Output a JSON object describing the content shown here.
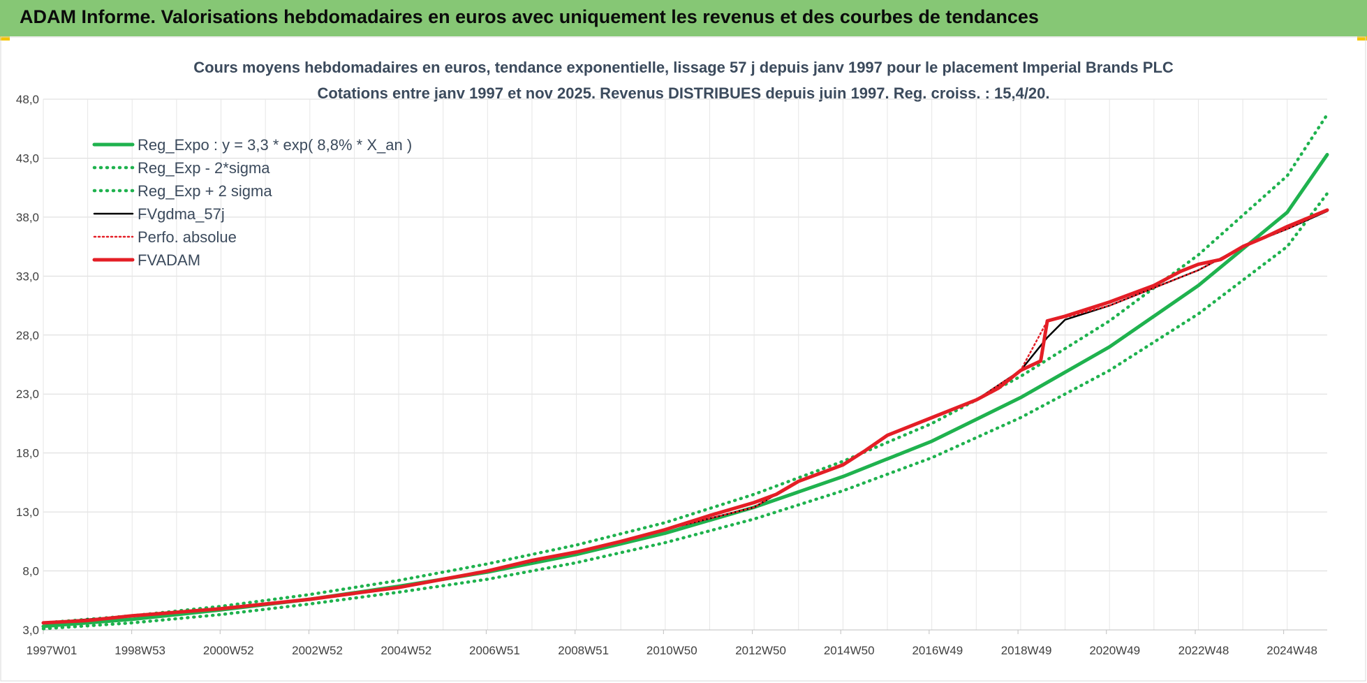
{
  "header": {
    "title": "ADAM Informe. Valorisations hebdomadaires en euros avec uniquement les revenus et des courbes de tendances"
  },
  "chart_data": {
    "type": "line",
    "title": "Cours moyens hebdomadaires en euros, tendance exponentielle, lissage 57 j depuis janv 1997 pour le placement Imperial Brands PLC",
    "subtitle": "Cotations entre janv 1997 et nov 2025. Revenus DISTRIBUES depuis juin 1997. Reg. croiss. : 15,4/20.",
    "xlabel": "",
    "ylabel": "",
    "ylim": [
      3.0,
      48.0
    ],
    "x_range": [
      1997.0,
      2025.9
    ],
    "yticks": [
      "3,0",
      "8,0",
      "13,0",
      "18,0",
      "23,0",
      "28,0",
      "33,0",
      "38,0",
      "43,0",
      "48,0"
    ],
    "xticks": [
      {
        "label": "1997W01",
        "t": 1997.0
      },
      {
        "label": "1998W53",
        "t": 1998.99
      },
      {
        "label": "2000W52",
        "t": 2000.98
      },
      {
        "label": "2002W52",
        "t": 2002.98
      },
      {
        "label": "2004W52",
        "t": 2004.98
      },
      {
        "label": "2006W51",
        "t": 2006.97
      },
      {
        "label": "2008W51",
        "t": 2008.97
      },
      {
        "label": "2010W50",
        "t": 2010.96
      },
      {
        "label": "2012W50",
        "t": 2012.96
      },
      {
        "label": "2014W50",
        "t": 2014.95
      },
      {
        "label": "2016W49",
        "t": 2016.94
      },
      {
        "label": "2018W49",
        "t": 2018.94
      },
      {
        "label": "2020W49",
        "t": 2020.93
      },
      {
        "label": "2022W48",
        "t": 2022.93
      },
      {
        "label": "2024W48",
        "t": 2024.92
      }
    ],
    "grid": true,
    "legend_position": "top-left",
    "series": [
      {
        "name": "Reg_Expo : y = 3,3 * exp( 8,8% *  X_an )",
        "color": "#1fb24e",
        "style": "solid",
        "points": [
          [
            1997,
            3.3
          ],
          [
            1999,
            3.9
          ],
          [
            2001,
            4.7
          ],
          [
            2003,
            5.6
          ],
          [
            2005,
            6.7
          ],
          [
            2007,
            7.9
          ],
          [
            2009,
            9.4
          ],
          [
            2011,
            11.2
          ],
          [
            2013,
            13.4
          ],
          [
            2015,
            16.0
          ],
          [
            2017,
            19.0
          ],
          [
            2019,
            22.7
          ],
          [
            2021,
            27.0
          ],
          [
            2023,
            32.2
          ],
          [
            2025,
            38.4
          ],
          [
            2025.9,
            43.3
          ]
        ]
      },
      {
        "name": "Reg_Exp - 2*sigma",
        "color": "#1fb24e",
        "style": "dotted",
        "points": [
          [
            1997,
            3.1
          ],
          [
            1999,
            3.6
          ],
          [
            2001,
            4.3
          ],
          [
            2003,
            5.2
          ],
          [
            2005,
            6.2
          ],
          [
            2007,
            7.3
          ],
          [
            2009,
            8.7
          ],
          [
            2011,
            10.4
          ],
          [
            2013,
            12.4
          ],
          [
            2015,
            14.8
          ],
          [
            2017,
            17.6
          ],
          [
            2019,
            21.0
          ],
          [
            2021,
            25.0
          ],
          [
            2023,
            29.8
          ],
          [
            2025,
            35.5
          ],
          [
            2025.9,
            40.0
          ]
        ]
      },
      {
        "name": "Reg_Exp + 2 sigma",
        "color": "#1fb24e",
        "style": "dotted",
        "points": [
          [
            1997,
            3.6
          ],
          [
            1999,
            4.2
          ],
          [
            2001,
            5.0
          ],
          [
            2003,
            6.0
          ],
          [
            2005,
            7.2
          ],
          [
            2007,
            8.6
          ],
          [
            2009,
            10.2
          ],
          [
            2011,
            12.1
          ],
          [
            2013,
            14.5
          ],
          [
            2015,
            17.3
          ],
          [
            2017,
            20.5
          ],
          [
            2019,
            24.5
          ],
          [
            2021,
            29.2
          ],
          [
            2023,
            34.8
          ],
          [
            2025,
            41.5
          ],
          [
            2025.9,
            46.7
          ]
        ]
      },
      {
        "name": "FVgdma_57j",
        "color": "#000000",
        "style": "solid",
        "points": [
          [
            1997,
            3.6
          ],
          [
            1999,
            4.2
          ],
          [
            2001,
            4.8
          ],
          [
            2003,
            5.6
          ],
          [
            2005,
            6.6
          ],
          [
            2007,
            8.0
          ],
          [
            2009,
            9.6
          ],
          [
            2011,
            11.5
          ],
          [
            2013,
            13.4
          ],
          [
            2014,
            15.6
          ],
          [
            2015,
            17.0
          ],
          [
            2016,
            19.5
          ],
          [
            2017,
            21.0
          ],
          [
            2018,
            22.5
          ],
          [
            2019,
            25.0
          ],
          [
            2019.6,
            27.8
          ],
          [
            2020,
            29.3
          ],
          [
            2021,
            30.5
          ],
          [
            2022,
            32.0
          ],
          [
            2023,
            33.5
          ],
          [
            2024,
            35.5
          ],
          [
            2025,
            37.0
          ],
          [
            2025.9,
            38.5
          ]
        ]
      },
      {
        "name": "Perfo. absolue",
        "color": "#e41e26",
        "style": "dotted",
        "points": [
          [
            1997,
            3.6
          ],
          [
            1999,
            4.2
          ],
          [
            2001,
            4.8
          ],
          [
            2003,
            5.6
          ],
          [
            2005,
            6.6
          ],
          [
            2007,
            8.0
          ],
          [
            2009,
            9.6
          ],
          [
            2011,
            11.5
          ],
          [
            2013,
            13.4
          ],
          [
            2014,
            15.6
          ],
          [
            2015,
            17.0
          ],
          [
            2016,
            19.5
          ],
          [
            2017,
            21.0
          ],
          [
            2018,
            22.5
          ],
          [
            2019,
            25.0
          ],
          [
            2019.6,
            29.2
          ],
          [
            2020,
            29.5
          ],
          [
            2021,
            30.5
          ],
          [
            2022,
            32.0
          ],
          [
            2023,
            33.5
          ],
          [
            2024,
            35.5
          ],
          [
            2025,
            37.0
          ],
          [
            2025.9,
            38.6
          ]
        ]
      },
      {
        "name": "FVADAM",
        "color": "#e41e26",
        "style": "solid",
        "points": [
          [
            1997,
            3.6
          ],
          [
            1998,
            3.8
          ],
          [
            1999,
            4.2
          ],
          [
            2000,
            4.5
          ],
          [
            2001,
            4.8
          ],
          [
            2002,
            5.2
          ],
          [
            2003,
            5.6
          ],
          [
            2004,
            6.1
          ],
          [
            2005,
            6.6
          ],
          [
            2006,
            7.3
          ],
          [
            2007,
            8.0
          ],
          [
            2008,
            8.9
          ],
          [
            2009,
            9.6
          ],
          [
            2010,
            10.5
          ],
          [
            2011,
            11.5
          ],
          [
            2012,
            12.7
          ],
          [
            2013,
            13.8
          ],
          [
            2013.5,
            14.5
          ],
          [
            2014,
            15.6
          ],
          [
            2015,
            17.0
          ],
          [
            2015.5,
            18.2
          ],
          [
            2016,
            19.5
          ],
          [
            2017,
            21.0
          ],
          [
            2018,
            22.5
          ],
          [
            2018.5,
            23.5
          ],
          [
            2019,
            25.0
          ],
          [
            2019.45,
            25.8
          ],
          [
            2019.6,
            29.2
          ],
          [
            2020,
            29.6
          ],
          [
            2020.5,
            30.2
          ],
          [
            2021,
            30.8
          ],
          [
            2022,
            32.2
          ],
          [
            2022.6,
            33.4
          ],
          [
            2023,
            34.0
          ],
          [
            2023.5,
            34.4
          ],
          [
            2024,
            35.5
          ],
          [
            2024.5,
            36.3
          ],
          [
            2025,
            37.2
          ],
          [
            2025.9,
            38.6
          ]
        ]
      }
    ]
  }
}
